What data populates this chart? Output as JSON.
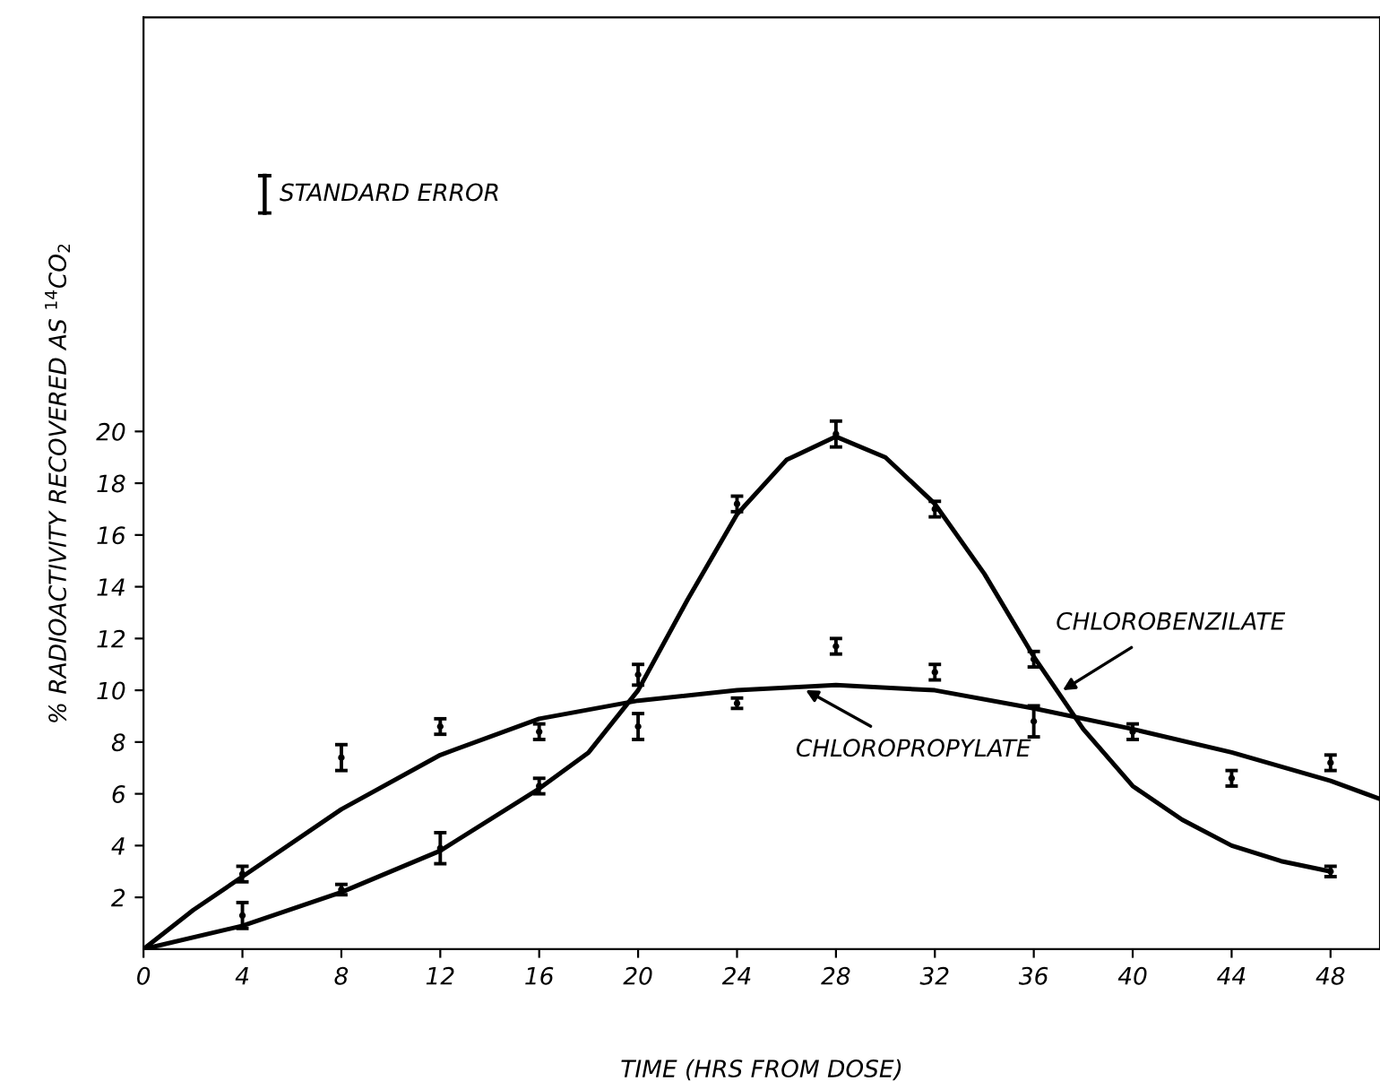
{
  "chart_data": {
    "type": "scatter",
    "xlabel": "TIME (HRS FROM DOSE)",
    "ylabel": "% RADIOACTIVITY RECOVERED AS $^{14}$CO$_{2}$",
    "xlim": [
      0,
      50
    ],
    "ylim": [
      0,
      36
    ],
    "xticks": [
      0,
      4,
      8,
      12,
      16,
      20,
      24,
      28,
      32,
      36,
      40,
      44,
      48
    ],
    "yticks": [
      2,
      4,
      6,
      8,
      10,
      12,
      14,
      16,
      18,
      20
    ],
    "grid": false,
    "legend": false,
    "line_style": "solid",
    "series": [
      {
        "color": "#000000",
        "marker": "circle",
        "x": [
          4,
          8,
          12,
          16,
          20,
          24,
          28,
          32,
          36,
          48
        ],
        "values": [
          1.3,
          2.3,
          3.9,
          6.3,
          10.6,
          17.2,
          19.9,
          17.0,
          11.2,
          3.0
        ],
        "errors": [
          0.5,
          0.2,
          0.6,
          0.3,
          0.4,
          0.3,
          0.5,
          0.3,
          0.3,
          0.2
        ]
      },
      {
        "color": "#000000",
        "marker": "circle",
        "x": [
          4,
          8,
          12,
          16,
          20,
          24,
          28,
          32,
          36,
          40,
          44,
          48
        ],
        "values": [
          2.9,
          7.4,
          8.6,
          8.4,
          8.6,
          9.5,
          11.7,
          10.7,
          8.8,
          8.4,
          6.6,
          7.2
        ],
        "errors": [
          0.3,
          0.5,
          0.3,
          0.3,
          0.5,
          0.2,
          0.3,
          0.3,
          0.6,
          0.3,
          0.3,
          0.3
        ]
      },
      {
        "type": "line",
        "color": "#000000",
        "x": [
          0,
          4,
          8,
          12,
          16,
          18,
          20,
          22,
          24,
          26,
          28,
          30,
          32,
          34,
          36,
          38,
          40,
          42,
          44,
          46,
          48
        ],
        "values": [
          0,
          0.9,
          2.2,
          3.8,
          6.2,
          7.6,
          10.0,
          13.5,
          16.8,
          18.9,
          19.8,
          19.0,
          17.2,
          14.5,
          11.3,
          8.5,
          6.3,
          5.0,
          4.0,
          3.4,
          3.0
        ]
      },
      {
        "type": "line",
        "color": "#000000",
        "x": [
          0,
          2,
          4,
          8,
          12,
          16,
          20,
          24,
          28,
          32,
          36,
          40,
          44,
          48,
          50
        ],
        "values": [
          0,
          1.5,
          2.8,
          5.4,
          7.5,
          8.9,
          9.6,
          10.0,
          10.2,
          10.0,
          9.3,
          8.5,
          7.6,
          6.5,
          5.8
        ]
      }
    ],
    "annotations": [
      "STANDARD ERROR",
      {
        "text": "CHLOROBENZILATE",
        "x": 37,
        "y": 9.9
      },
      {
        "text": "CHLOROPROPYLATE",
        "x": 26.6,
        "y": 10.1
      }
    ]
  }
}
